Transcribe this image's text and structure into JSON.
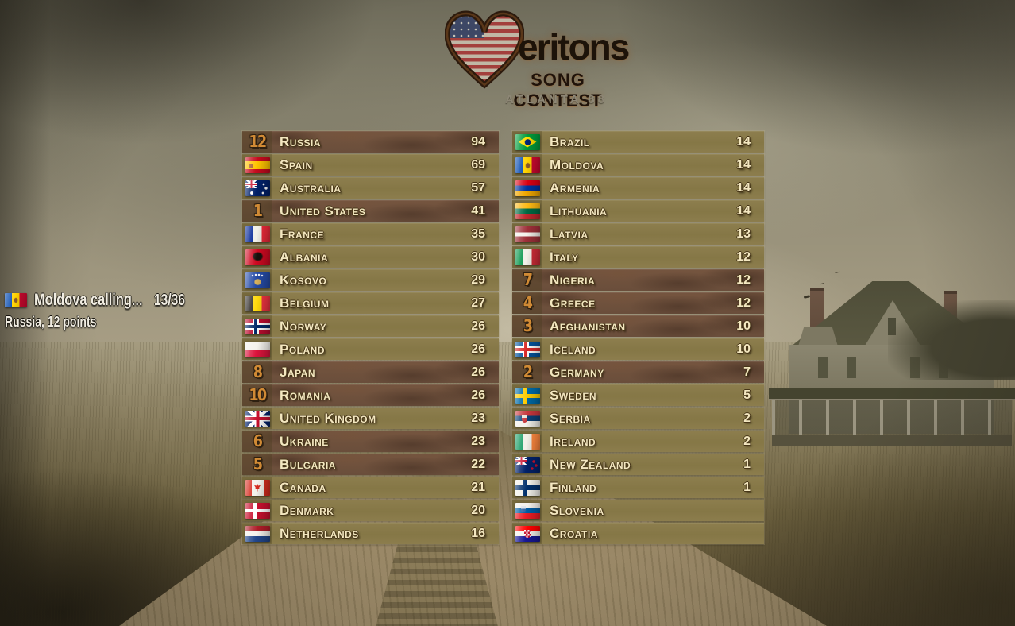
{
  "logo": {
    "heart_icon": "usa-flag-heart",
    "wordmark": "eritons",
    "subtitle": "SONG CONTEST",
    "host": "ATLANTA 88"
  },
  "announcement": {
    "flag_icon": "moldova-flag",
    "title": "Moldova calling...",
    "progress": "13/36",
    "result": "Russia, 12 points"
  },
  "scoreboard": {
    "left": [
      {
        "country": "Russia",
        "score": "94",
        "points": "12",
        "highlight": true
      },
      {
        "country": "Spain",
        "score": "69",
        "flag": "es"
      },
      {
        "country": "Australia",
        "score": "57",
        "flag": "au"
      },
      {
        "country": "United States",
        "score": "41",
        "points": "1",
        "highlight": true
      },
      {
        "country": "France",
        "score": "35",
        "flag": "fr"
      },
      {
        "country": "Albania",
        "score": "30",
        "flag": "al"
      },
      {
        "country": "Kosovo",
        "score": "29",
        "flag": "xk"
      },
      {
        "country": "Belgium",
        "score": "27",
        "flag": "be"
      },
      {
        "country": "Norway",
        "score": "26",
        "flag": "no"
      },
      {
        "country": "Poland",
        "score": "26",
        "flag": "pl"
      },
      {
        "country": "Japan",
        "score": "26",
        "points": "8",
        "highlight": true
      },
      {
        "country": "Romania",
        "score": "26",
        "points": "10",
        "highlight": true
      },
      {
        "country": "United Kingdom",
        "score": "23",
        "flag": "gb"
      },
      {
        "country": "Ukraine",
        "score": "23",
        "points": "6",
        "highlight": true
      },
      {
        "country": "Bulgaria",
        "score": "22",
        "points": "5",
        "highlight": true
      },
      {
        "country": "Canada",
        "score": "21",
        "flag": "ca"
      },
      {
        "country": "Denmark",
        "score": "20",
        "flag": "dk"
      },
      {
        "country": "Netherlands",
        "score": "16",
        "flag": "nl"
      }
    ],
    "right": [
      {
        "country": "Brazil",
        "score": "14",
        "flag": "br"
      },
      {
        "country": "Moldova",
        "score": "14",
        "flag": "md"
      },
      {
        "country": "Armenia",
        "score": "14",
        "flag": "am"
      },
      {
        "country": "Lithuania",
        "score": "14",
        "flag": "lt"
      },
      {
        "country": "Latvia",
        "score": "13",
        "flag": "lv"
      },
      {
        "country": "Italy",
        "score": "12",
        "flag": "it"
      },
      {
        "country": "Nigeria",
        "score": "12",
        "points": "7",
        "highlight": true
      },
      {
        "country": "Greece",
        "score": "12",
        "points": "4",
        "highlight": true
      },
      {
        "country": "Afghanistan",
        "score": "10",
        "points": "3",
        "highlight": true
      },
      {
        "country": "Iceland",
        "score": "10",
        "flag": "is"
      },
      {
        "country": "Germany",
        "score": "7",
        "points": "2",
        "highlight": true
      },
      {
        "country": "Sweden",
        "score": "5",
        "flag": "se"
      },
      {
        "country": "Serbia",
        "score": "2",
        "flag": "rs"
      },
      {
        "country": "Ireland",
        "score": "2",
        "flag": "ie"
      },
      {
        "country": "New Zealand",
        "score": "1",
        "flag": "nz"
      },
      {
        "country": "Finland",
        "score": "1",
        "flag": "fi"
      },
      {
        "country": "Slovenia",
        "score": "",
        "flag": "si"
      },
      {
        "country": "Croatia",
        "score": "",
        "flag": "hr"
      }
    ]
  },
  "colors": {
    "badge-orange": "#d08a35",
    "text-cream": "#f3e7c0",
    "row-olive": "#877847",
    "row-highlight-brown": "#6f5240"
  }
}
